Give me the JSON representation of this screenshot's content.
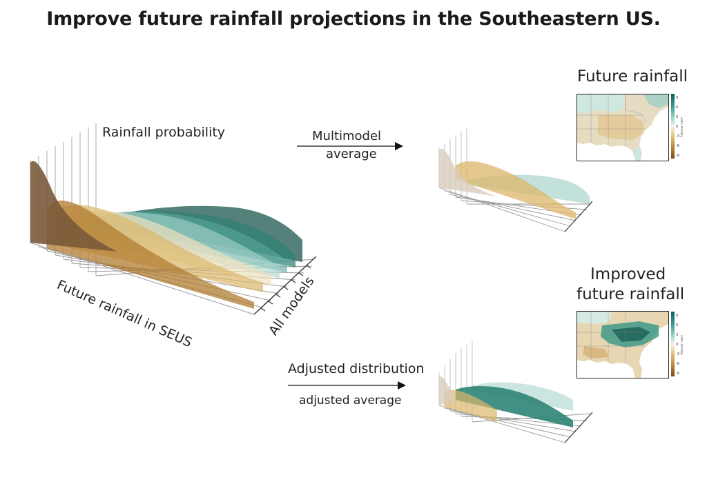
{
  "title": "Improve future rainfall projections in the Southeastern US.",
  "main_plot": {
    "z_label": "Rainfall probability",
    "x_label": "Future rainfall in SEUS",
    "y_label": "All models"
  },
  "arrow_top": {
    "line1": "Multimodel",
    "line2": "average"
  },
  "arrow_bottom": {
    "line1": "Adjusted distribution",
    "line2": "adjusted average"
  },
  "map_top": {
    "title": "Future rainfall",
    "units": "units: mm/day"
  },
  "map_bottom": {
    "title_line1": "Improved",
    "title_line2": "future rainfall",
    "units": "units: mm/day"
  },
  "colorbar_ticks": [
    "9",
    "6",
    "3",
    "0",
    "-3",
    "-6",
    "-9"
  ],
  "colors": {
    "dry_dark": "#7a5a3a",
    "dry": "#b07c30",
    "tan": "#dcb66a",
    "pale": "#ece0bd",
    "wet_pale": "#a8d4cc",
    "wet": "#3e9a8a",
    "wet_dark": "#245f56"
  }
}
